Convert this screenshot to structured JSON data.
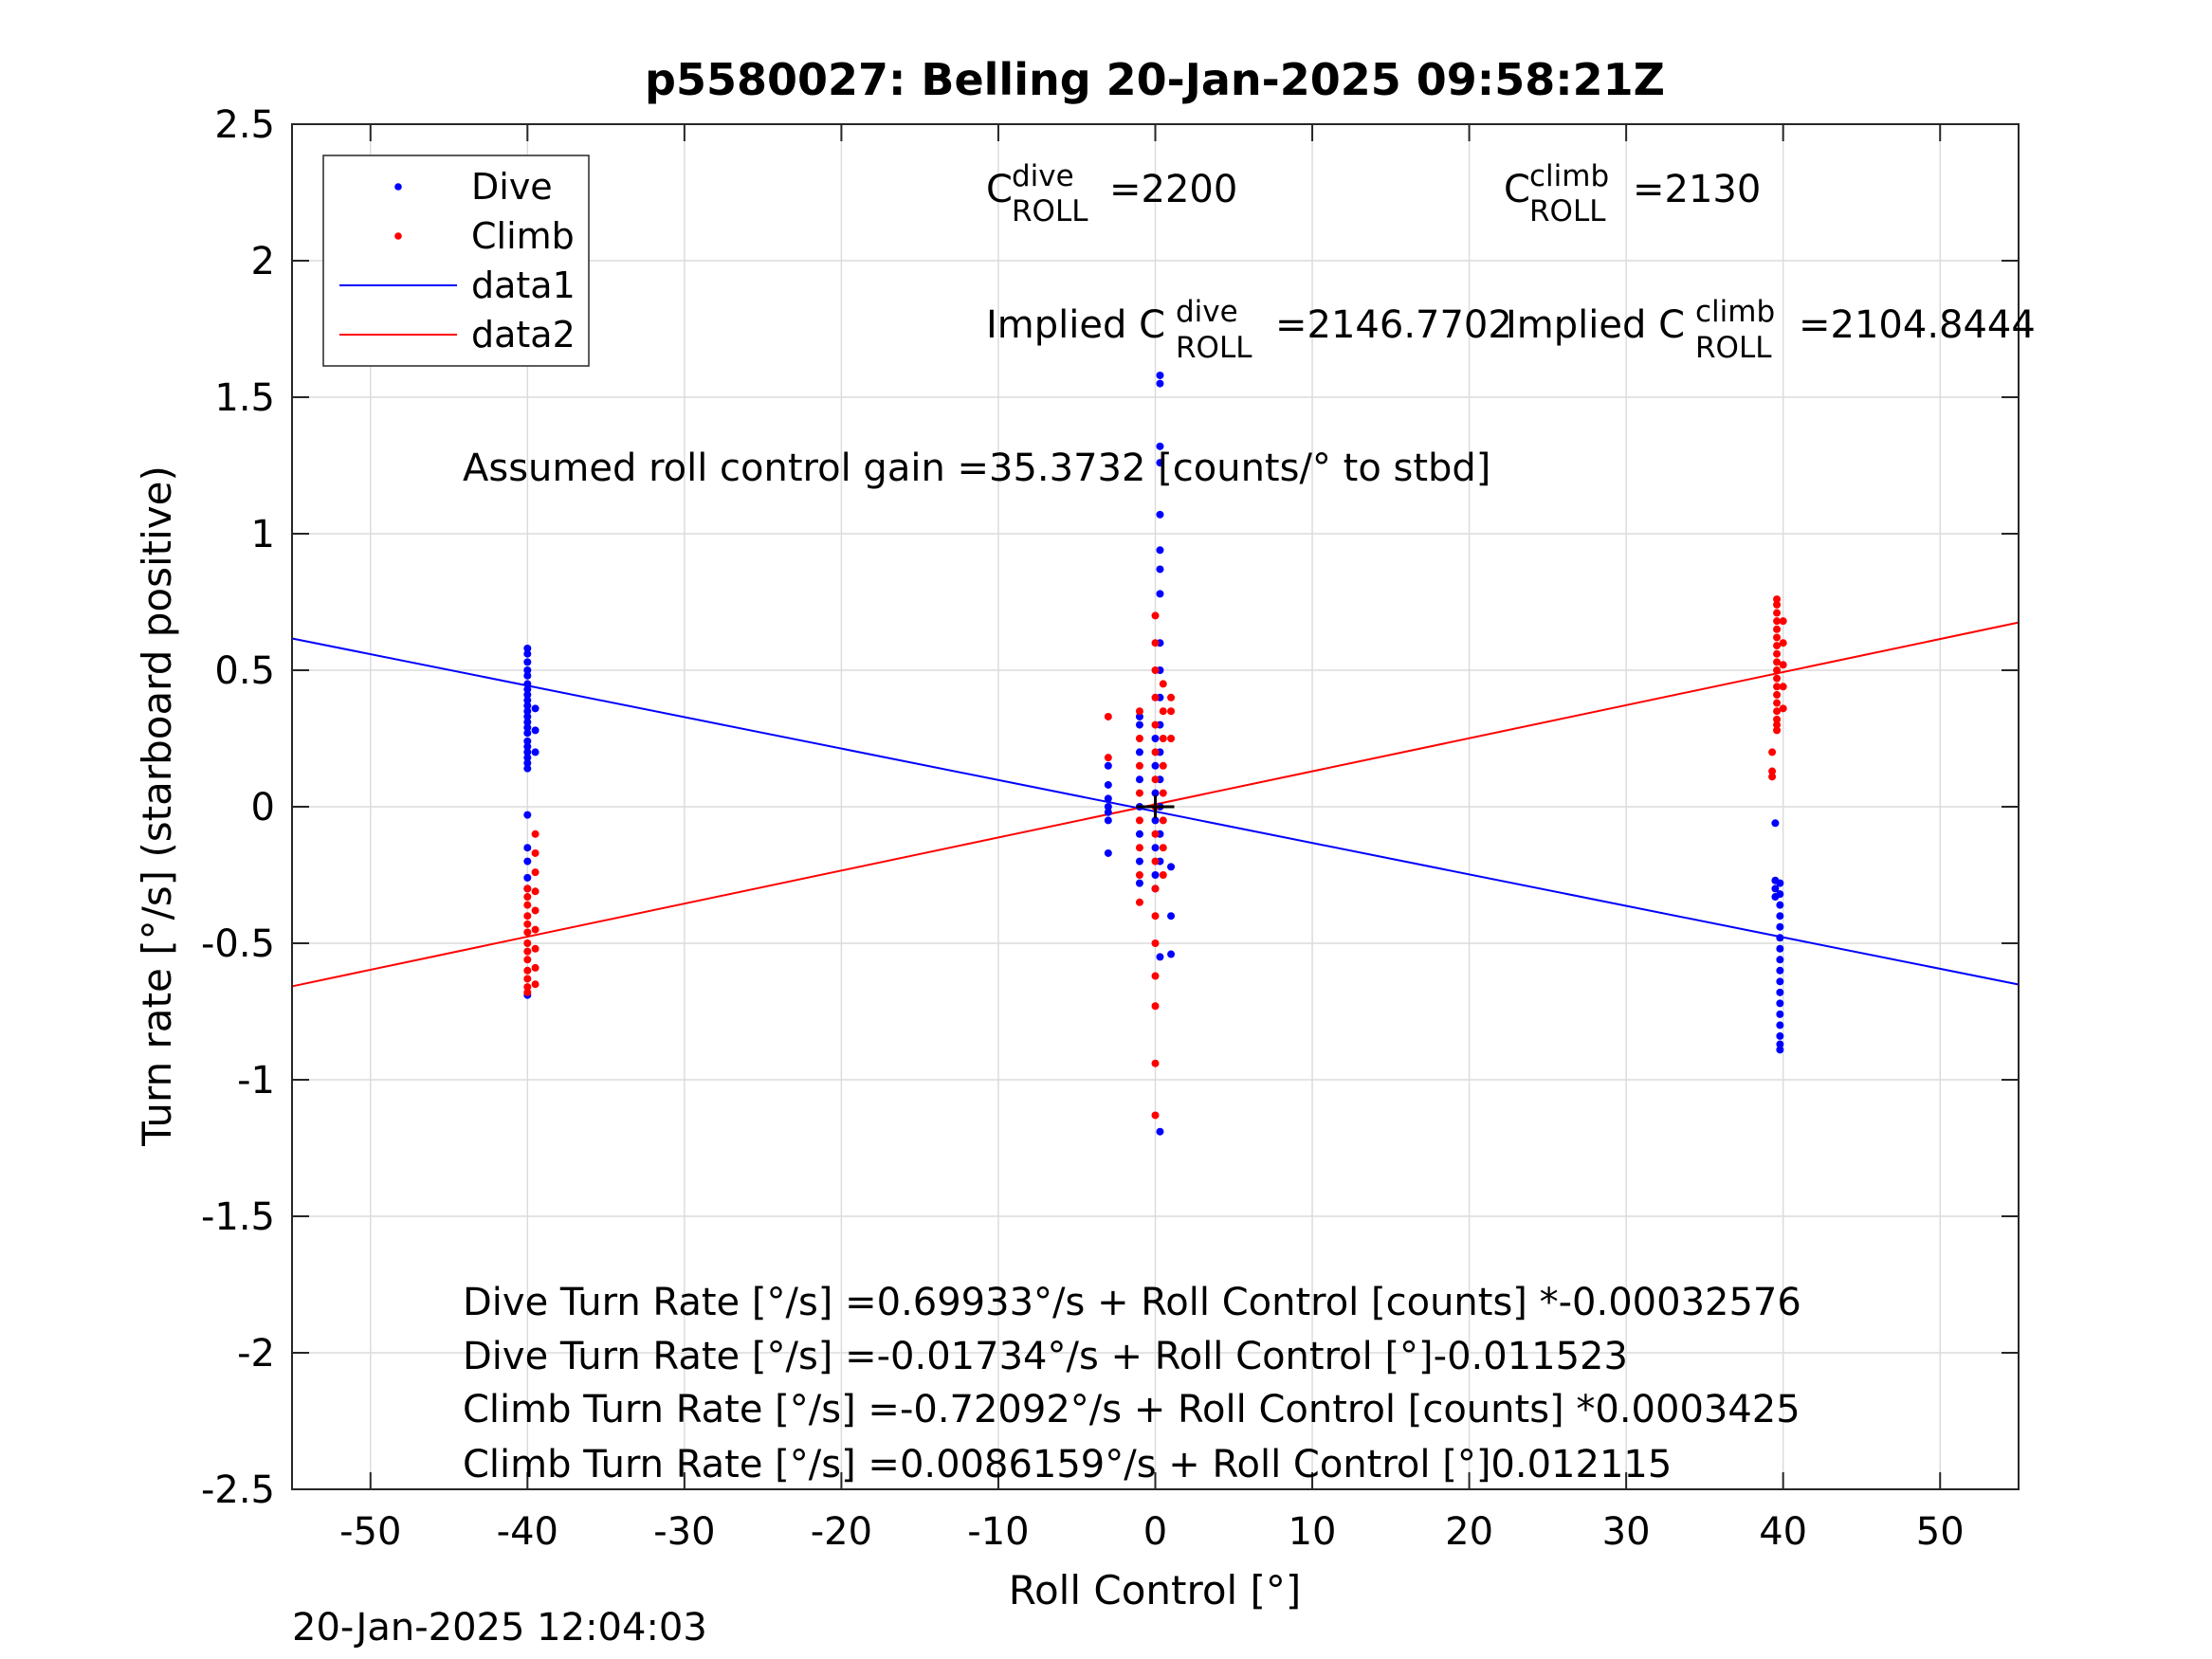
{
  "chart_data": {
    "type": "scatter",
    "title": "p5580027: Belling 20-Jan-2025 09:58:21Z",
    "xlabel": "Roll Control [°]",
    "ylabel": "Turn rate [°/s] (starboard positive)",
    "xlim": [
      -55,
      55
    ],
    "ylim": [
      -2.5,
      2.5
    ],
    "xticks": [
      -50,
      -40,
      -30,
      -20,
      -10,
      0,
      10,
      20,
      30,
      40,
      50
    ],
    "yticks": [
      2.5,
      2,
      1.5,
      1,
      0.5,
      0,
      -0.5,
      -1,
      -1.5,
      -2,
      -2.5
    ],
    "grid": true,
    "legend_position": "top-left",
    "legend": [
      {
        "label": "Dive",
        "kind": "marker",
        "color": "#0000ff"
      },
      {
        "label": "Climb",
        "kind": "marker",
        "color": "#ff0000"
      },
      {
        "label": "data1",
        "kind": "line",
        "color": "#0000ff"
      },
      {
        "label": "data2",
        "kind": "line",
        "color": "#ff0000"
      }
    ],
    "series": [
      {
        "name": "Dive",
        "color": "#0000ff",
        "groups": [
          {
            "x": -40.0,
            "y": [
              0.58,
              0.56,
              0.53,
              0.5,
              0.48,
              0.45,
              0.43,
              0.41,
              0.39,
              0.37,
              0.35,
              0.33,
              0.31,
              0.29,
              0.27,
              0.24,
              0.22,
              0.2,
              0.18,
              0.16,
              0.14,
              -0.03,
              -0.15,
              -0.2,
              -0.26,
              -0.3,
              -0.69
            ]
          },
          {
            "x": -39.5,
            "y": [
              0.36,
              0.28,
              0.2
            ]
          },
          {
            "x": -3.0,
            "y": [
              0.15,
              0.08,
              0.03,
              0.0,
              -0.02,
              -0.05,
              -0.17
            ]
          },
          {
            "x": -1.0,
            "y": [
              0.33,
              0.3,
              0.2,
              0.1,
              0.0,
              -0.1,
              -0.2,
              -0.28
            ]
          },
          {
            "x": 0.0,
            "y": [
              0.25,
              0.15,
              0.05,
              -0.05,
              -0.15,
              -0.25,
              -0.3
            ]
          },
          {
            "x": 0.3,
            "y": [
              1.58,
              1.55,
              1.32,
              1.26,
              1.07,
              0.94,
              0.87,
              0.78,
              0.6,
              0.5,
              0.4,
              0.3,
              0.2,
              0.1,
              0.0,
              -0.1,
              -0.2,
              -0.55,
              -1.19
            ]
          },
          {
            "x": 1.0,
            "y": [
              -0.22,
              -0.4,
              -0.54
            ]
          },
          {
            "x": 39.5,
            "y": [
              -0.06,
              -0.27,
              -0.3,
              -0.33
            ]
          },
          {
            "x": 39.8,
            "y": [
              -0.28,
              -0.32,
              -0.36,
              -0.4,
              -0.44,
              -0.48,
              -0.52,
              -0.56,
              -0.6,
              -0.64,
              -0.68,
              -0.72,
              -0.76,
              -0.8,
              -0.84,
              -0.87,
              -0.89
            ]
          }
        ]
      },
      {
        "name": "Climb",
        "color": "#ff0000",
        "groups": [
          {
            "x": -40.0,
            "y": [
              -0.3,
              -0.33,
              -0.36,
              -0.4,
              -0.43,
              -0.46,
              -0.5,
              -0.53,
              -0.56,
              -0.6,
              -0.63,
              -0.66,
              -0.68
            ]
          },
          {
            "x": -39.5,
            "y": [
              -0.1,
              -0.17,
              -0.24,
              -0.31,
              -0.38,
              -0.45,
              -0.52,
              -0.59,
              -0.65
            ]
          },
          {
            "x": -3.0,
            "y": [
              0.33,
              0.18
            ]
          },
          {
            "x": -1.0,
            "y": [
              0.35,
              0.25,
              0.15,
              0.05,
              -0.05,
              -0.15,
              -0.25,
              -0.35
            ]
          },
          {
            "x": 0.0,
            "y": [
              0.7,
              0.6,
              0.5,
              0.4,
              0.3,
              0.2,
              0.1,
              0.0,
              -0.1,
              -0.2,
              -0.3,
              -0.4,
              -0.5,
              -0.62,
              -0.73,
              -0.94,
              -1.13
            ]
          },
          {
            "x": 0.5,
            "y": [
              0.45,
              0.35,
              0.25,
              0.15,
              0.05,
              -0.05,
              -0.15,
              -0.25
            ]
          },
          {
            "x": 1.0,
            "y": [
              0.4,
              0.35,
              0.25
            ]
          },
          {
            "x": 39.3,
            "y": [
              0.2,
              0.13,
              0.11
            ]
          },
          {
            "x": 39.6,
            "y": [
              0.76,
              0.74,
              0.71,
              0.68,
              0.65,
              0.62,
              0.59,
              0.56,
              0.53,
              0.5,
              0.47,
              0.44,
              0.41,
              0.38,
              0.35,
              0.32,
              0.3,
              0.28
            ]
          },
          {
            "x": 40.0,
            "y": [
              0.68,
              0.6,
              0.52,
              0.44,
              0.36
            ]
          }
        ]
      },
      {
        "name": "data1",
        "type": "line",
        "color": "#0000ff",
        "intercept": -0.01734,
        "slope": -0.011523
      },
      {
        "name": "data2",
        "type": "line",
        "color": "#ff0000",
        "intercept": 0.0086159,
        "slope": 0.012115
      }
    ],
    "crosshair": {
      "x": 0.0,
      "y": 0.0
    },
    "annotations": {
      "c_roll_dive": {
        "base": "C",
        "sup": "dive",
        "sub": "ROLL",
        "value": "=2200"
      },
      "c_roll_climb": {
        "base": "C",
        "sup": "climb",
        "sub": "ROLL",
        "value": "=2130"
      },
      "implied_dive": {
        "base": "Implied C",
        "sup": "dive",
        "sub": "ROLL",
        "value": "=2146.7702"
      },
      "implied_climb": {
        "base": "Implied C",
        "sup": "climb",
        "sub": "ROLL",
        "value": "=2104.8444"
      },
      "gain": "Assumed roll control gain =35.3732 [counts/° to stbd]",
      "fit_lines": [
        "Dive Turn Rate [°/s] =0.69933°/s + Roll Control [counts] *-0.00032576",
        "Dive Turn Rate [°/s] =-0.01734°/s + Roll Control [°]-0.011523",
        "Climb Turn Rate [°/s] =-0.72092°/s + Roll Control [counts] *0.0003425",
        "Climb Turn Rate [°/s] =0.0086159°/s + Roll Control [°]0.012115"
      ]
    },
    "timestamp": "20-Jan-2025 12:04:03"
  }
}
